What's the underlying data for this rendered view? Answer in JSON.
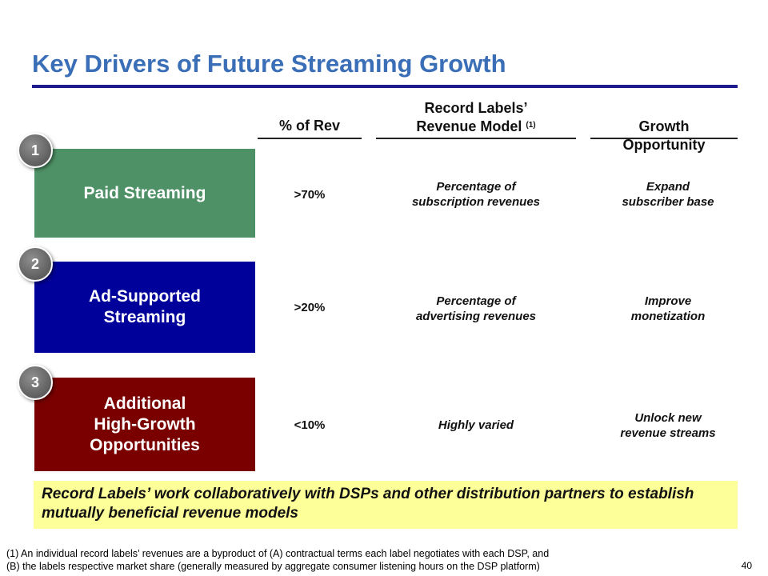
{
  "title": "Key Drivers of Future Streaming Growth",
  "columns": {
    "rev": "% of Rev",
    "model_line1": "Record Labels’",
    "model_line2": "Revenue Model",
    "model_note": "(1)",
    "growth": "Growth\nOpportunity"
  },
  "rows": [
    {
      "number": "1",
      "label": "Paid Streaming",
      "color": "#4f9166",
      "rev": ">70%",
      "model": "Percentage of\nsubscription revenues",
      "growth": "Expand\nsubscriber base"
    },
    {
      "number": "2",
      "label": "Ad-Supported\nStreaming",
      "color": "#00009a",
      "rev": ">20%",
      "model": "Percentage of\nadvertising revenues",
      "growth": "Improve\nmonetization"
    },
    {
      "number": "3",
      "label": "Additional\nHigh-Growth\nOpportunities",
      "color": "#7a0000",
      "rev": "<10%",
      "model": "Highly varied",
      "growth": "Unlock new\nrevenue streams"
    }
  ],
  "callout": "Record Labels’ work collaboratively with DSPs and other distribution partners to establish mutually beneficial revenue models",
  "footnote": "(1) An individual record labels’ revenues are a byproduct of (A) contractual terms each label negotiates with each DSP, and\n(B) the labels respective market share (generally measured by aggregate consumer listening hours on the DSP platform)",
  "page_number": "40"
}
